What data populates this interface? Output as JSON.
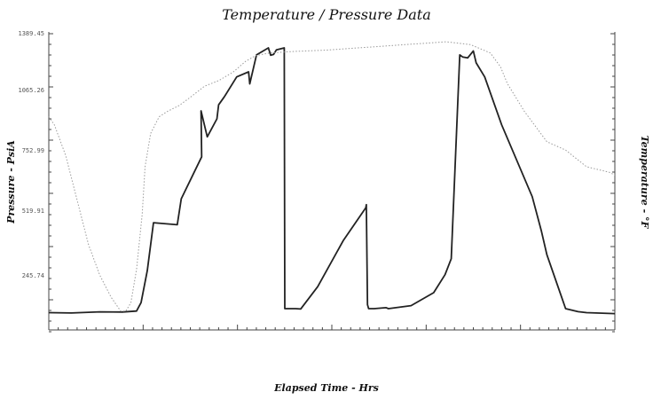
{
  "chart_data": {
    "type": "line",
    "title": "Temperature / Pressure Data",
    "xlabel": "Elapsed Time - Hrs",
    "ylabel_left": "Pressure - PsiA",
    "ylabel_right": "Temperature - °F",
    "left_ticks": [
      "1389.45",
      "1065.26",
      "752.99",
      "519.91",
      "245.74"
    ],
    "ylim_left": [
      0,
      1389.45
    ],
    "ylim_right": [
      0,
      1
    ],
    "xlim": [
      0,
      100
    ],
    "grid": false,
    "series": [
      {
        "axis": "left",
        "style": "dark-solid",
        "color": "#222222",
        "x": [
          0,
          4,
          9,
          13,
          15.5,
          16.3,
          17.4,
          18.5,
          22.7,
          23.4,
          27,
          26.9,
          28,
          29.7,
          30,
          31,
          33.2,
          35.3,
          35.5,
          36.7,
          38.8,
          39.2,
          39.7,
          40.2,
          41.6,
          41.7,
          43.6,
          44.5,
          47.5,
          52,
          56,
          56.1,
          56.3,
          56.5,
          57.5,
          59.6,
          60,
          64,
          68,
          70,
          71.1,
          72.6,
          73.1,
          74,
          75,
          75.5,
          77,
          80,
          85.4,
          87,
          88,
          91.3,
          93.5,
          95,
          100
        ],
        "y": [
          20,
          18,
          24,
          23,
          28,
          70,
          230,
          470,
          460,
          590,
          800,
          1030,
          900,
          990,
          1060,
          1100,
          1200,
          1225,
          1165,
          1310,
          1345,
          1308,
          1312,
          1335,
          1345,
          40,
          40,
          38,
          150,
          380,
          545,
          560,
          60,
          40,
          40,
          45,
          40,
          55,
          120,
          210,
          290,
          1310,
          1300,
          1295,
          1330,
          1270,
          1200,
          960,
          600,
          430,
          310,
          40,
          25,
          20,
          15
        ]
      },
      {
        "axis": "right",
        "style": "light-dotted",
        "color": "#9a9a9a",
        "x": [
          0,
          1,
          3,
          5,
          7,
          9,
          11,
          12.7,
          13.6,
          14.5,
          15.5,
          16.5,
          17,
          18,
          19.5,
          21,
          23,
          25,
          27.5,
          30,
          32.5,
          34.8,
          36.5,
          39,
          43,
          49,
          56,
          63,
          70.2,
          74.5,
          78,
          79.8,
          81,
          84,
          88,
          91.3,
          95,
          99,
          100
        ],
        "y": [
          0.72,
          0.69,
          0.58,
          0.42,
          0.26,
          0.15,
          0.07,
          0.02,
          0.02,
          0.05,
          0.17,
          0.37,
          0.54,
          0.66,
          0.72,
          0.74,
          0.76,
          0.79,
          0.83,
          0.85,
          0.88,
          0.92,
          0.94,
          0.95,
          0.955,
          0.96,
          0.97,
          0.98,
          0.99,
          0.98,
          0.95,
          0.9,
          0.84,
          0.74,
          0.63,
          0.6,
          0.54,
          0.52,
          0.51
        ]
      }
    ]
  }
}
